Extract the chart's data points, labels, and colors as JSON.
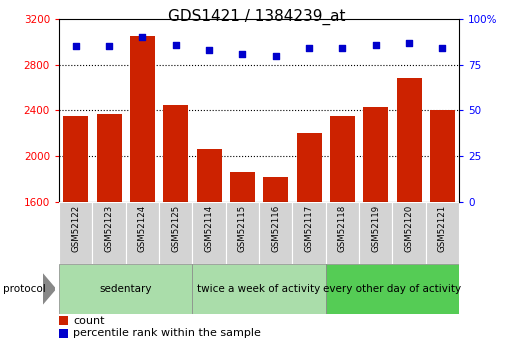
{
  "title": "GDS1421 / 1384239_at",
  "samples": [
    "GSM52122",
    "GSM52123",
    "GSM52124",
    "GSM52125",
    "GSM52114",
    "GSM52115",
    "GSM52116",
    "GSM52117",
    "GSM52118",
    "GSM52119",
    "GSM52120",
    "GSM52121"
  ],
  "counts": [
    2350,
    2370,
    3050,
    2450,
    2060,
    1860,
    1820,
    2200,
    2350,
    2430,
    2680,
    2400
  ],
  "percentiles": [
    85,
    85,
    90,
    86,
    83,
    81,
    80,
    84,
    84,
    86,
    87,
    84
  ],
  "groups": [
    {
      "label": "sedentary",
      "start": 0,
      "end": 4,
      "color": "#aaddaa"
    },
    {
      "label": "twice a week of activity",
      "start": 4,
      "end": 8,
      "color": "#aaddaa"
    },
    {
      "label": "every other day of activity",
      "start": 8,
      "end": 12,
      "color": "#55cc55"
    }
  ],
  "ylim_left": [
    1600,
    3200
  ],
  "ylim_right": [
    0,
    100
  ],
  "yticks_left": [
    1600,
    2000,
    2400,
    2800,
    3200
  ],
  "yticks_right": [
    0,
    25,
    50,
    75,
    100
  ],
  "bar_color": "#cc2200",
  "dot_color": "#0000cc",
  "bg_color": "#ffffff",
  "title_fontsize": 11,
  "tick_fontsize": 7.5,
  "sample_fontsize": 6.5,
  "group_fontsize": 7.5,
  "legend_fontsize": 8
}
